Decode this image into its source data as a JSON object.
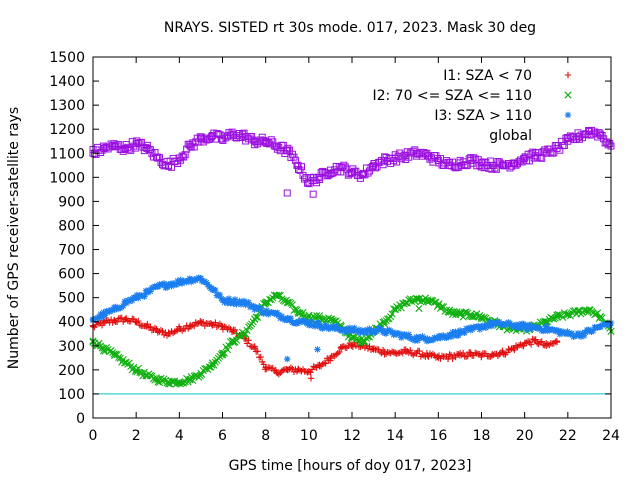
{
  "chart_data": {
    "type": "scatter",
    "title": "NRAYS. SISTED rt 30s mode. 017, 2023. Mask 30 deg",
    "xlabel": "GPS time [hours of doy 017, 2023]",
    "ylabel": "Number of GPS receiver-satellite rays",
    "xlim": [
      0,
      24
    ],
    "ylim": [
      0,
      1500
    ],
    "xticks": [
      0,
      2,
      4,
      6,
      8,
      10,
      12,
      14,
      16,
      18,
      20,
      22,
      24
    ],
    "yticks": [
      0,
      100,
      200,
      300,
      400,
      500,
      600,
      700,
      800,
      900,
      1000,
      1100,
      1200,
      1300,
      1400,
      1500
    ],
    "threshold_line": {
      "y": 100,
      "color": "#00c8c8"
    },
    "legend_position": "top-right",
    "series": [
      {
        "name": "I1: SZA < 70",
        "marker": "+",
        "color": "#e01010",
        "x": [
          0,
          0.5,
          1,
          1.5,
          2,
          2.5,
          3,
          3.5,
          4,
          4.5,
          5,
          5.5,
          6,
          6.5,
          7,
          7.5,
          8,
          8.5,
          9,
          9.5,
          10,
          10.5,
          11,
          11.5,
          12,
          12.5,
          13,
          13.5,
          14,
          14.5,
          15,
          15.5,
          16,
          16.5,
          17,
          17.5,
          18,
          18.5,
          19,
          19.5,
          20,
          20.5,
          21,
          21.5
        ],
        "values": [
          380,
          395,
          405,
          410,
          400,
          380,
          360,
          350,
          370,
          385,
          395,
          390,
          380,
          360,
          330,
          290,
          210,
          190,
          200,
          200,
          195,
          215,
          250,
          290,
          305,
          300,
          285,
          275,
          270,
          275,
          270,
          260,
          250,
          255,
          260,
          265,
          260,
          265,
          270,
          290,
          310,
          320,
          300,
          315
        ]
      },
      {
        "name": "I2: 70 <= SZA <= 110",
        "marker": "x",
        "color": "#10b010",
        "x": [
          0,
          0.5,
          1,
          1.5,
          2,
          2.5,
          3,
          3.5,
          4,
          4.5,
          5,
          5.5,
          6,
          6.5,
          7,
          7.5,
          8,
          8.5,
          9,
          9.5,
          10,
          10.5,
          11,
          11.5,
          12,
          12.5,
          13,
          13.5,
          14,
          14.5,
          15,
          15.5,
          16,
          16.5,
          17,
          17.5,
          18,
          18.5,
          19,
          19.5,
          20,
          20.5,
          21,
          21.5,
          22,
          22.5,
          23,
          23.5,
          24
        ],
        "values": [
          320,
          290,
          260,
          230,
          200,
          175,
          160,
          150,
          150,
          160,
          185,
          220,
          270,
          320,
          350,
          410,
          480,
          510,
          480,
          440,
          420,
          415,
          410,
          380,
          330,
          320,
          360,
          400,
          450,
          480,
          495,
          490,
          470,
          440,
          430,
          430,
          420,
          400,
          380,
          370,
          370,
          380,
          400,
          420,
          430,
          440,
          450,
          420,
          360
        ]
      },
      {
        "name": "I3: SZA > 110",
        "marker": "*",
        "color": "#1a7ef0",
        "x": [
          0,
          0.5,
          1,
          1.5,
          2,
          2.5,
          3,
          3.5,
          4,
          4.5,
          5,
          5.5,
          6,
          6.5,
          7,
          7.5,
          8,
          8.5,
          9,
          9.5,
          10,
          10.5,
          11,
          11.5,
          12,
          12.5,
          13,
          13.5,
          14,
          14.5,
          15,
          15.5,
          16,
          16.5,
          17,
          17.5,
          18,
          18.5,
          19,
          19.5,
          20,
          20.5,
          21,
          21.5,
          22,
          22.5,
          23,
          23.5,
          24
        ],
        "values": [
          410,
          430,
          450,
          480,
          500,
          520,
          545,
          555,
          565,
          575,
          580,
          540,
          490,
          485,
          480,
          460,
          440,
          430,
          415,
          400,
          395,
          385,
          375,
          370,
          365,
          360,
          365,
          360,
          350,
          340,
          330,
          330,
          335,
          345,
          355,
          365,
          380,
          390,
          390,
          385,
          380,
          375,
          370,
          360,
          350,
          345,
          360,
          380,
          395
        ]
      },
      {
        "name": "global",
        "marker": "square",
        "color": "#9b10e0",
        "x": [
          0,
          0.5,
          1,
          1.5,
          2,
          2.5,
          3,
          3.5,
          4,
          4.5,
          5,
          5.5,
          6,
          6.5,
          7,
          7.5,
          8,
          8.5,
          9,
          9.5,
          10,
          10.5,
          11,
          11.5,
          12,
          12.5,
          13,
          13.5,
          14,
          14.5,
          15,
          15.5,
          16,
          16.5,
          17,
          17.5,
          18,
          18.5,
          19,
          19.5,
          20,
          20.5,
          21,
          21.5,
          22,
          22.5,
          23,
          23.5,
          24
        ],
        "values": [
          1100,
          1120,
          1130,
          1120,
          1140,
          1120,
          1080,
          1050,
          1080,
          1130,
          1160,
          1170,
          1160,
          1180,
          1170,
          1150,
          1150,
          1130,
          1110,
          1050,
          980,
          1000,
          1030,
          1040,
          1020,
          1010,
          1050,
          1070,
          1080,
          1090,
          1100,
          1090,
          1070,
          1050,
          1060,
          1070,
          1060,
          1050,
          1050,
          1060,
          1080,
          1090,
          1100,
          1120,
          1150,
          1170,
          1190,
          1180,
          1130
        ]
      }
    ],
    "outliers": [
      {
        "series": "global",
        "x": 9,
        "y": 935
      },
      {
        "series": "global",
        "x": 10.2,
        "y": 930
      },
      {
        "series": "I3: SZA > 110",
        "x": 9,
        "y": 245
      },
      {
        "series": "I3: SZA > 110",
        "x": 10.4,
        "y": 285
      },
      {
        "series": "I2: 70 <= SZA <= 110",
        "x": 15.1,
        "y": 455
      },
      {
        "series": "I1: SZA < 70",
        "x": 10.1,
        "y": 165
      }
    ]
  }
}
